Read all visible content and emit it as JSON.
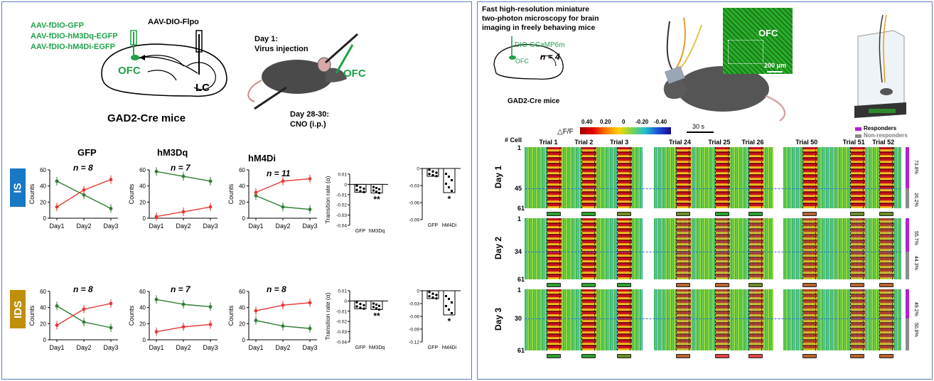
{
  "left": {
    "constructs": [
      "AAV-fDIO-GFP",
      "AAV-fDIO-hM3Dq-EGFP",
      "AAV-fDIO-hM4Di-EGFP"
    ],
    "virus_top": "AAV-DIO-Flpo",
    "region_ofc": "OFC",
    "region_lc": "LC",
    "mouse_line": "GAD2-Cre mice",
    "day1_label": "Day 1:",
    "day1_text": "Virus injection",
    "day28_label": "Day 28-30:",
    "day28_text": "CNO (i.p.)",
    "ofc_mouse": "OFC",
    "rows": [
      {
        "tag": "IS",
        "tag_color": "#1778c4"
      },
      {
        "tag": "IDS",
        "tag_color": "#bf8f0a"
      }
    ],
    "group_titles": [
      "GFP",
      "hM3Dq",
      "hM4Di"
    ],
    "n_is": [
      "n = 8",
      "n = 7",
      "n = 11"
    ],
    "n_ids": [
      "n = 8",
      "n = 7",
      "n = 8"
    ],
    "y_axis": "Counts",
    "x_ticks": [
      "Day1",
      "Day2",
      "Day3"
    ],
    "y_ticks": [
      "0",
      "20",
      "40",
      "60"
    ],
    "transition_label": "Transition rate (α)",
    "bar_labels_a": [
      "GFP",
      "hM3Dq"
    ],
    "bar_labels_b": [
      "GFP",
      "hM4Di"
    ],
    "sig_double": "**",
    "sig_single": "*",
    "is_ticks_a": [
      "0.01",
      "0",
      "-0.01",
      "-0.02",
      "-0.03",
      "-0.04"
    ],
    "is_ticks_b": [
      "0",
      "-0.03",
      "-0.06",
      "-0.09"
    ],
    "ids_ticks_a": [
      "0.01",
      "0",
      "-0.01",
      "-0.02",
      "-0.03",
      "-0.04"
    ],
    "ids_ticks_b": [
      "0",
      "-0.03",
      "-0.06",
      "-0.09",
      "-0.12"
    ]
  },
  "chart_data": [
    {
      "type": "line",
      "title": "GFP",
      "categories": [
        "Day1",
        "Day2",
        "Day3"
      ],
      "ylim": [
        0,
        60
      ],
      "series": [
        {
          "values": [
            46,
            29,
            12
          ],
          "color": "#2e7d32"
        },
        {
          "values": [
            14,
            35,
            48
          ],
          "color": "#e53935"
        }
      ]
    },
    {
      "type": "line",
      "title": "hM3Dq",
      "categories": [
        "Day1",
        "Day2",
        "Day3"
      ],
      "ylim": [
        0,
        60
      ],
      "series": [
        {
          "values": [
            58,
            52,
            46
          ],
          "color": "#2e7d32"
        },
        {
          "values": [
            2,
            8,
            14
          ],
          "color": "#e53935"
        }
      ]
    },
    {
      "type": "line",
      "title": "hM4Di",
      "categories": [
        "Day1",
        "Day2",
        "Day3"
      ],
      "ylim": [
        0,
        60
      ],
      "series": [
        {
          "values": [
            28,
            14,
            11
          ],
          "color": "#2e7d32"
        },
        {
          "values": [
            32,
            46,
            49
          ],
          "color": "#e53935"
        }
      ]
    },
    {
      "type": "line",
      "title": "",
      "categories": [
        "Day1",
        "Day2",
        "Day3"
      ],
      "ylim": [
        0,
        60
      ],
      "series": [
        {
          "values": [
            42,
            22,
            15
          ],
          "color": "#2e7d32"
        },
        {
          "values": [
            18,
            38,
            45
          ],
          "color": "#e53935"
        }
      ]
    },
    {
      "type": "line",
      "title": "",
      "categories": [
        "Day1",
        "Day2",
        "Day3"
      ],
      "ylim": [
        0,
        60
      ],
      "series": [
        {
          "values": [
            50,
            44,
            41
          ],
          "color": "#2e7d32"
        },
        {
          "values": [
            10,
            16,
            19
          ],
          "color": "#e53935"
        }
      ]
    },
    {
      "type": "line",
      "title": "",
      "categories": [
        "Day1",
        "Day2",
        "Day3"
      ],
      "ylim": [
        0,
        60
      ],
      "series": [
        {
          "values": [
            24,
            17,
            14
          ],
          "color": "#2e7d32"
        },
        {
          "values": [
            36,
            43,
            46
          ],
          "color": "#e53935"
        }
      ]
    }
  ],
  "right": {
    "title": [
      "Fast high-resolution miniature",
      "two-photon microscopy for brain",
      "imaging in freely behaving mice"
    ],
    "indicator": "DIO-GCaMP6m",
    "ofc": "OFC",
    "n": "n = 4",
    "mouse_line": "GAD2-Cre mice",
    "ofc_img": "OFC",
    "scale": "200 μm",
    "colorbar_label": "△F/F",
    "colorbar_ticks": [
      "0.40",
      "0.20",
      "0",
      "-0.20",
      "-0.40"
    ],
    "time_scale": "30 s",
    "cell_label": "# Cell",
    "trials": [
      "Trial 1",
      "Trial 2",
      "Trial 3",
      "Trial 24",
      "Trial 25",
      "Trial 26",
      "Trial 50",
      "Trial 51",
      "Trial 52"
    ],
    "legend_resp": "Responders",
    "legend_non": "Non-responders",
    "legend_resp_color": "#b51fd1",
    "legend_non_color": "#8c8c8c",
    "days": [
      {
        "label": "Day 1",
        "ticks": [
          "1",
          "45",
          "61"
        ],
        "resp": "73.8%",
        "non": "26.2%"
      },
      {
        "label": "Day 2",
        "ticks": [
          "1",
          "34",
          "61"
        ],
        "resp": "55.7%",
        "non": "44.3%"
      },
      {
        "label": "Day 3",
        "ticks": [
          "1",
          "30",
          "61"
        ],
        "resp": "49.2%",
        "non": "50.8%"
      }
    ]
  }
}
